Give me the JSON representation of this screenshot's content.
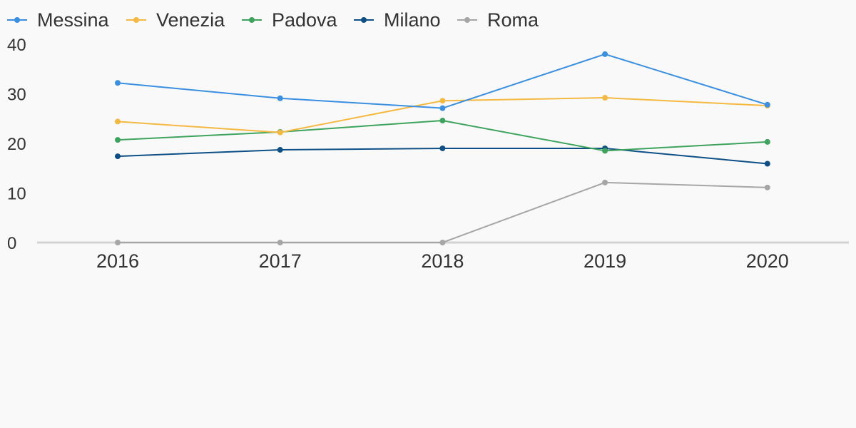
{
  "chart_data": {
    "type": "line",
    "x": [
      "2016",
      "2017",
      "2018",
      "2019",
      "2020"
    ],
    "series": [
      {
        "name": "Messina",
        "color": "#3a8fe0",
        "values": [
          32.2,
          29.1,
          27.1,
          38.0,
          27.8
        ]
      },
      {
        "name": "Venezia",
        "color": "#f5b942",
        "values": [
          24.4,
          22.2,
          28.6,
          29.2,
          27.6
        ]
      },
      {
        "name": "Padova",
        "color": "#3da35d",
        "values": [
          20.7,
          22.3,
          24.6,
          18.5,
          20.3
        ]
      },
      {
        "name": "Milano",
        "color": "#0e4f85",
        "values": [
          17.4,
          18.7,
          19.0,
          19.0,
          15.9
        ]
      },
      {
        "name": "Roma",
        "color": "#a6a6a6",
        "values": [
          0,
          0,
          0,
          12.1,
          11.1
        ]
      }
    ],
    "y_ticks": [
      "0",
      "10",
      "20",
      "30",
      "40"
    ],
    "ylim": [
      0,
      40
    ],
    "grid": false,
    "legend_position": "top-left",
    "title": "",
    "xlabel": "",
    "ylabel": ""
  }
}
